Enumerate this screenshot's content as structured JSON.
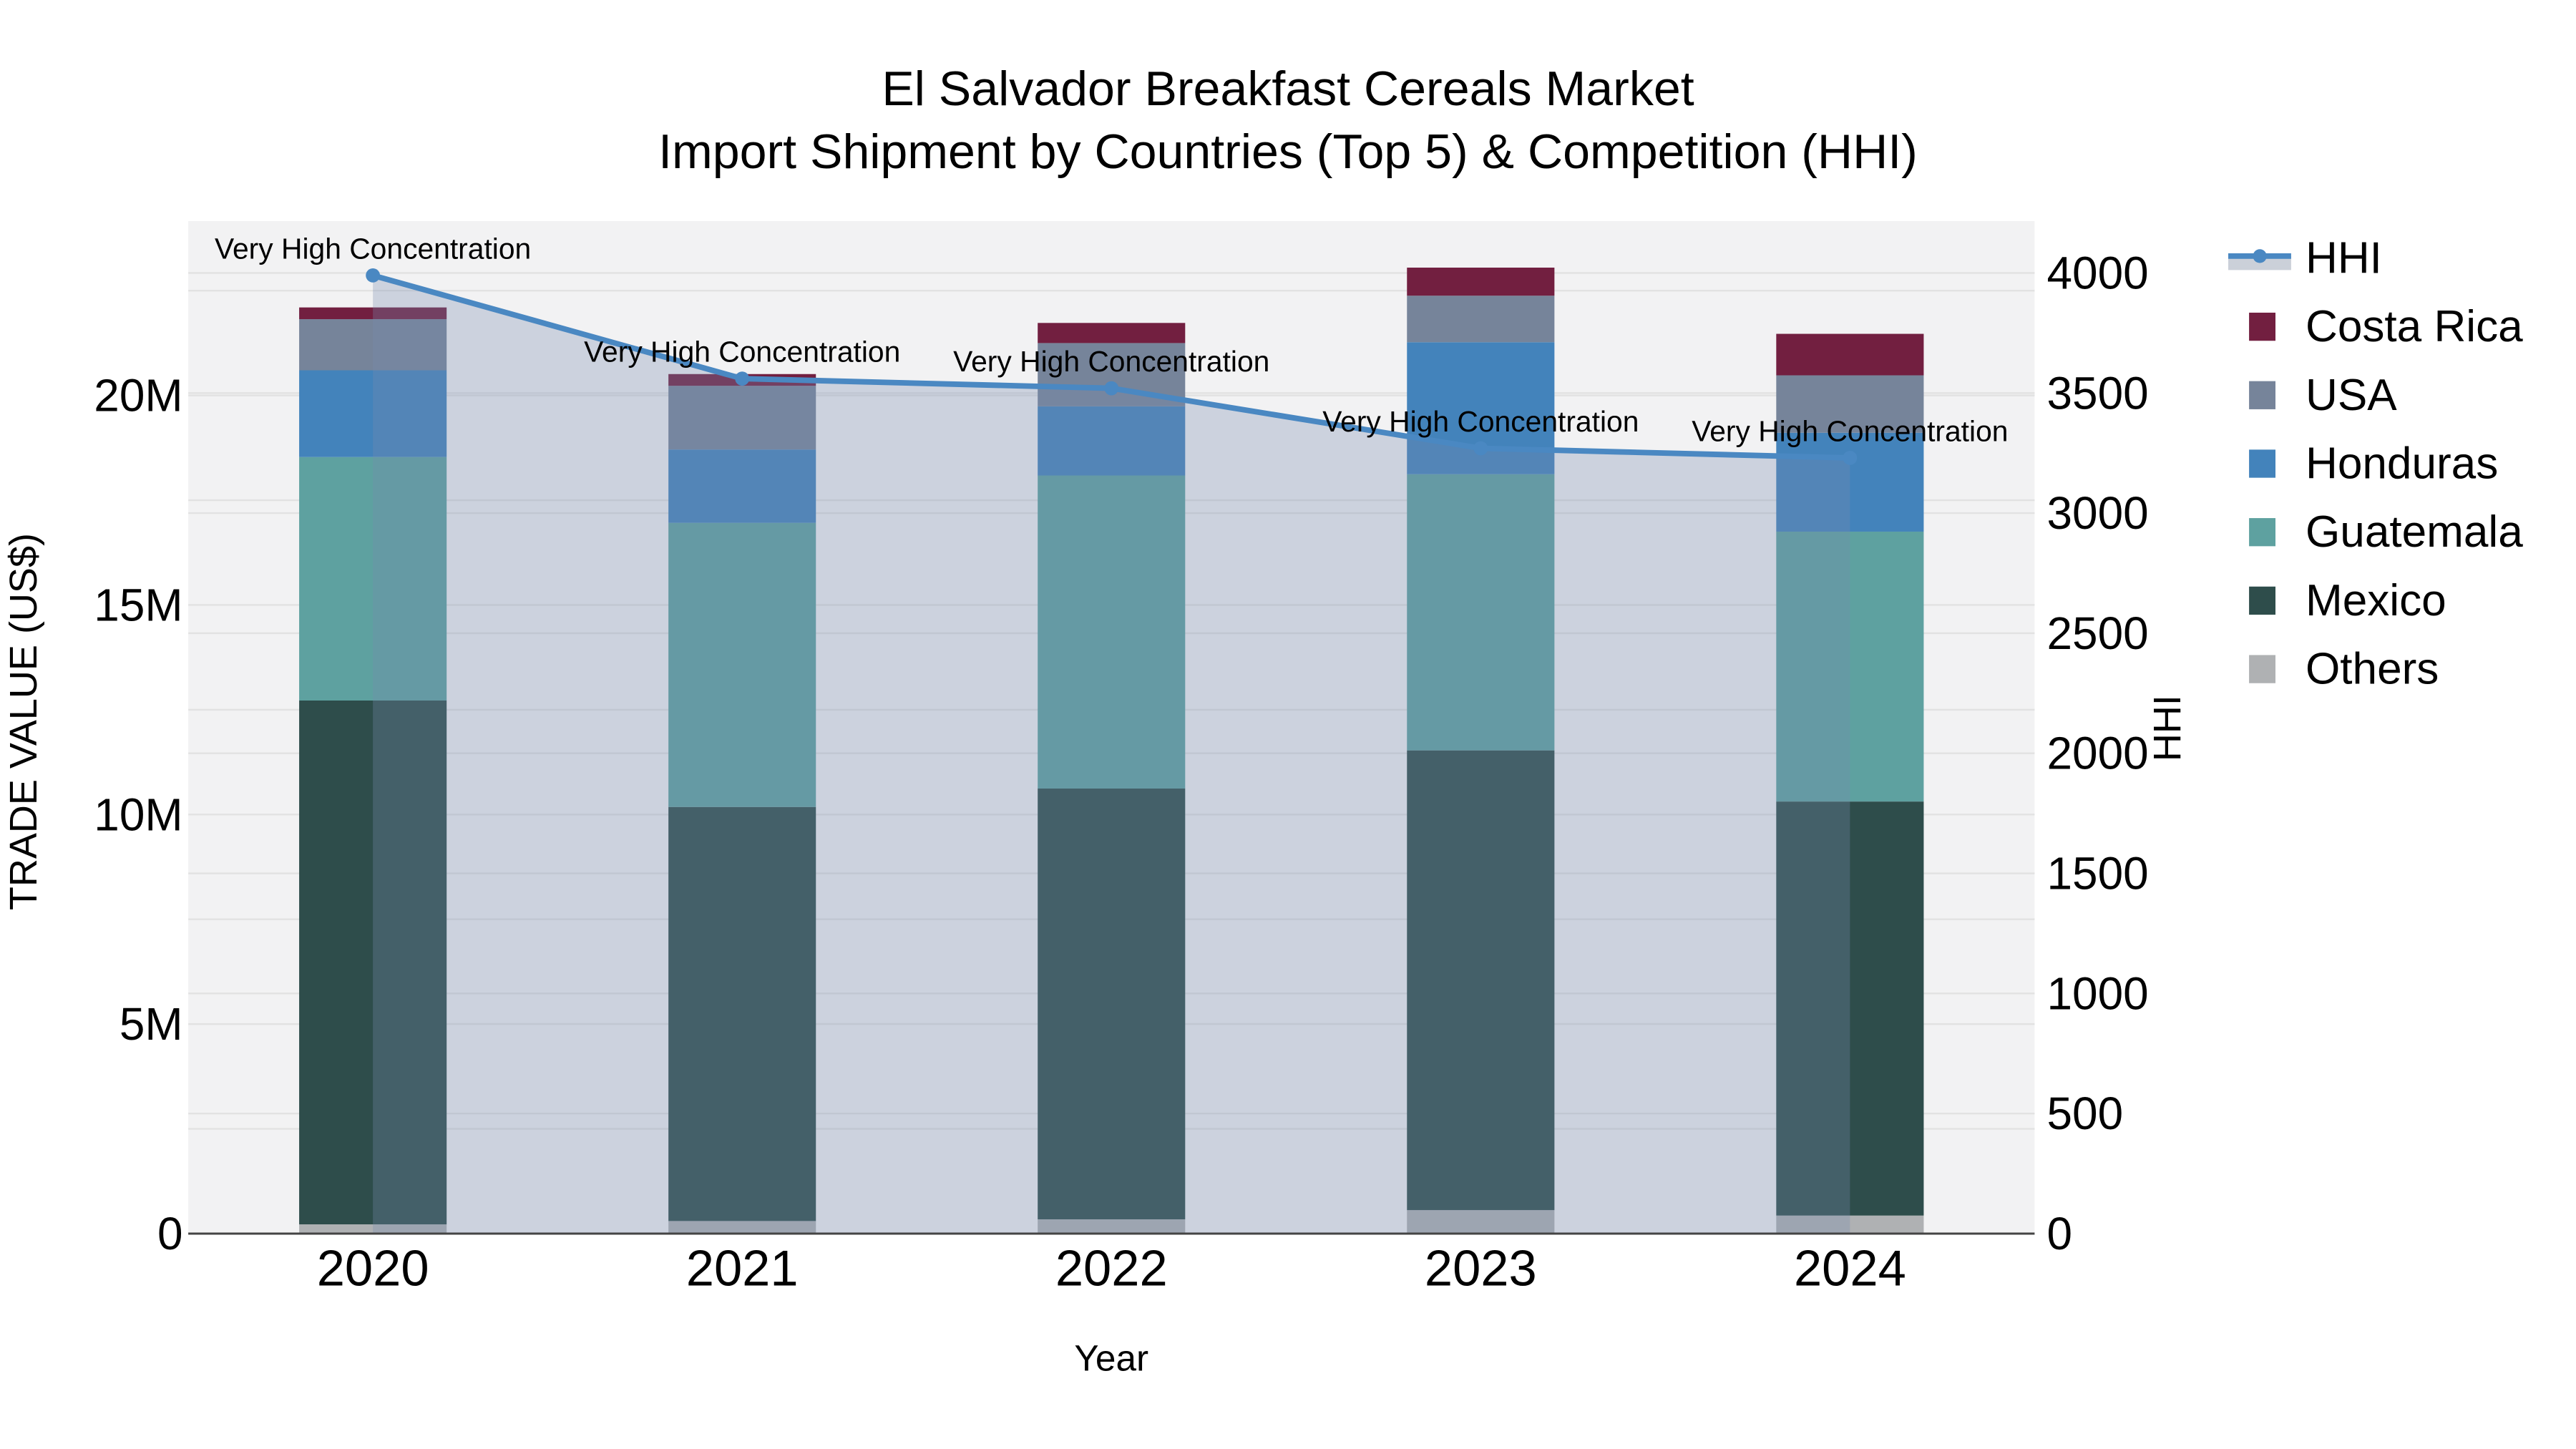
{
  "chart": {
    "title_line1": "El Salvador Breakfast Cereals Market",
    "title_line2": "Import Shipment by Countries (Top 5) & Competition (HHI)",
    "xlabel": "Year",
    "ylabel_left": "TRADE VALUE (US$)",
    "ylabel_right": "HHI"
  },
  "chart_data": {
    "type": "bar+line",
    "title": "El Salvador Breakfast Cereals Market — Import Shipment by Countries (Top 5) & Competition (HHI)",
    "categories": [
      "2020",
      "2021",
      "2022",
      "2023",
      "2024"
    ],
    "stacked_bar_series_bottom_to_top": [
      {
        "name": "Others",
        "color": "#AFB1B3",
        "values_million_usd": [
          0.22,
          0.3,
          0.34,
          0.56,
          0.43
        ]
      },
      {
        "name": "Mexico",
        "color": "#2E4D4B",
        "values_million_usd": [
          12.5,
          9.88,
          10.28,
          10.97,
          9.88
        ]
      },
      {
        "name": "Guatemala",
        "color": "#5EA1A0",
        "values_million_usd": [
          5.81,
          6.78,
          7.47,
          6.59,
          6.44
        ]
      },
      {
        "name": "Honduras",
        "color": "#4383BB",
        "values_million_usd": [
          2.07,
          1.75,
          1.65,
          3.15,
          2.36
        ]
      },
      {
        "name": "USA",
        "color": "#76849A",
        "values_million_usd": [
          1.22,
          1.52,
          1.51,
          1.11,
          1.37
        ]
      },
      {
        "name": "Costa Rica",
        "color": "#721F40",
        "values_million_usd": [
          0.28,
          0.28,
          0.48,
          0.67,
          0.99
        ]
      }
    ],
    "line_series": {
      "name": "HHI",
      "axis": "right",
      "color": "#4A88C2",
      "area_fill_color": "rgba(119,139,174,0.31)",
      "area_fill_visible_tone": "#CBD0D9",
      "values": [
        3990,
        3560,
        3520,
        3270,
        3230
      ]
    },
    "point_annotations": [
      "Very High Concentration",
      "Very High Concentration",
      "Very High Concentration",
      "Very High Concentration",
      "Very High Concentration"
    ],
    "axes": {
      "left": {
        "label": "TRADE VALUE (US$)",
        "tick_labels": [
          "0",
          "5M",
          "10M",
          "15M",
          "20M"
        ],
        "tick_values_million": [
          0,
          5,
          10,
          15,
          20
        ],
        "range_million": [
          0,
          24.16
        ],
        "grid_step_million": 2.5
      },
      "right": {
        "label": "HHI",
        "tick_labels": [
          "0",
          "500",
          "1000",
          "1500",
          "2000",
          "2500",
          "3000",
          "3500",
          "4000"
        ],
        "tick_values": [
          0,
          500,
          1000,
          1500,
          2000,
          2500,
          3000,
          3500,
          4000
        ],
        "range": [
          0,
          4216
        ],
        "grid_step": 500
      },
      "x": {
        "label": "Year",
        "tick_labels": [
          "2020",
          "2021",
          "2022",
          "2023",
          "2024"
        ]
      }
    },
    "legend_entries": [
      {
        "name": "HHI",
        "type": "line",
        "color": "#4A88C2"
      },
      {
        "name": "Costa Rica",
        "type": "patch",
        "color": "#721F40"
      },
      {
        "name": "USA",
        "type": "patch",
        "color": "#76849A"
      },
      {
        "name": "Honduras",
        "type": "patch",
        "color": "#4383BB"
      },
      {
        "name": "Guatemala",
        "type": "patch",
        "color": "#5EA1A0"
      },
      {
        "name": "Mexico",
        "type": "patch",
        "color": "#2E4D4B"
      },
      {
        "name": "Others",
        "type": "patch",
        "color": "#AFB1B3"
      }
    ],
    "grid": true,
    "legend_position": "outside-right-top",
    "plot_background": "#F2F2F3",
    "gridline_color": "#E2E2E2",
    "axis_spine_color": "#444444"
  }
}
